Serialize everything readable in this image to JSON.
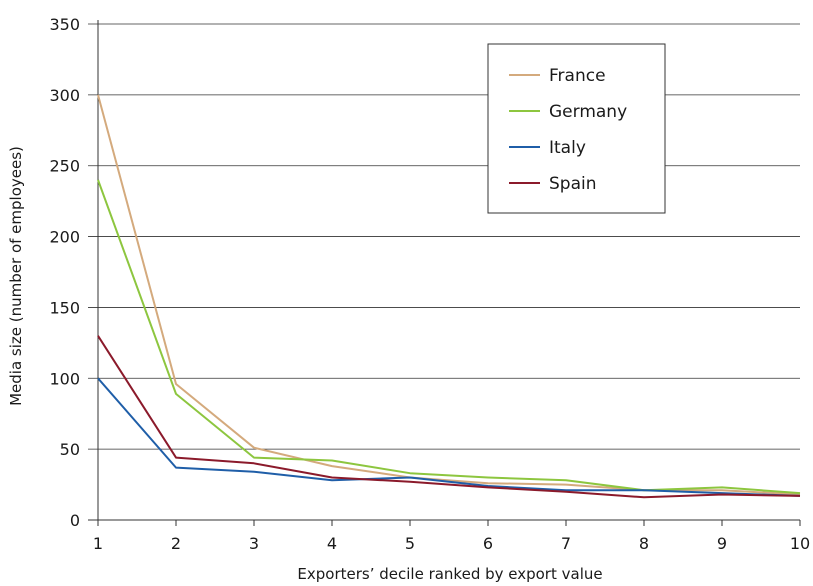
{
  "chart_data": {
    "type": "line",
    "title": "",
    "xlabel": "Exporters’ decile ranked by export value",
    "ylabel": "Media size (number of employees)",
    "x": [
      1,
      2,
      3,
      4,
      5,
      6,
      7,
      8,
      9,
      10
    ],
    "ylim": [
      0,
      350
    ],
    "yticks": [
      0,
      50,
      100,
      150,
      200,
      250,
      300,
      350
    ],
    "grid": true,
    "legend_position": "top-right",
    "series": [
      {
        "name": "France",
        "color": "#d4aa7d",
        "values": [
          300,
          96,
          51,
          38,
          30,
          26,
          25,
          21,
          21,
          18
        ]
      },
      {
        "name": "Germany",
        "color": "#8dc63f",
        "values": [
          240,
          89,
          44,
          42,
          33,
          30,
          28,
          21,
          23,
          19
        ]
      },
      {
        "name": "Italy",
        "color": "#1f5ea8",
        "values": [
          100,
          37,
          34,
          28,
          30,
          24,
          21,
          21,
          19,
          17
        ]
      },
      {
        "name": "Spain",
        "color": "#8b1a2b",
        "values": [
          130,
          44,
          40,
          30,
          27,
          23,
          20,
          16,
          18,
          17
        ]
      }
    ]
  }
}
